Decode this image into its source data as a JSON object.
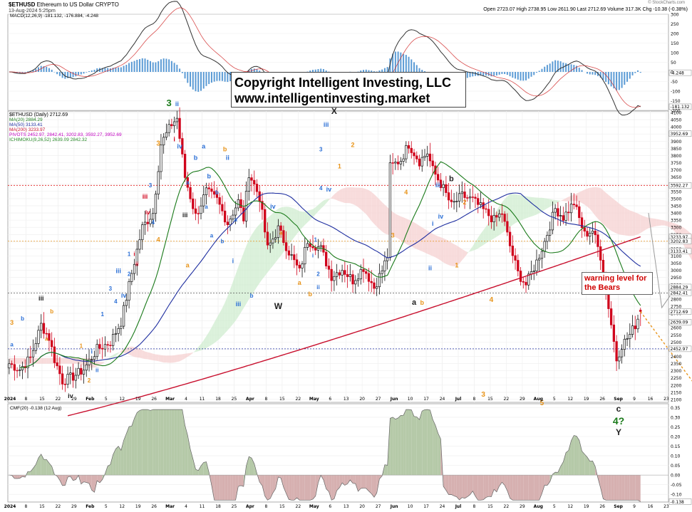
{
  "header": {
    "symbol": "$ETHUSD",
    "name": "Ethereum to US Dollar",
    "exchange": "CRYPTO",
    "date": "13-Aug-2024 5:25pm",
    "ohlc": "Open 2723.07  High 2738.95  Low 2611.90  Last 2712.69  Volume 317.3K  Chg -10.38 (-0.38%)",
    "credit": "© StockCharts.com"
  },
  "copyright": {
    "line1": "Copyright Intelligent Investing, LLC",
    "line2": "www.intelligentinvesting.market"
  },
  "warning_label": "warning level for the Bears",
  "legend": {
    "macd": "MACD(12,26,9) -181.132, -176.884, -4.248",
    "price": "$ETHUSD (Daily) 2712.69",
    "ma20": "MA(20) 2884.29",
    "ma50": "MA(50) 3133.41",
    "ma200": "MA(200) 3233.97",
    "pivots": "PIVOTS 2452.97, 2842.41, 3202.83, 3592.27, 3952.69",
    "ichimoku": "ICHIMOKU(9,26,52) 2639.09 2842.32",
    "cmf": "CMF(20) -0.138 (12 Aug)"
  },
  "colors": {
    "up": "#111111",
    "down": "#d0021b",
    "ma20": "#1a7a1a",
    "ma50": "#1f2fa0",
    "ma200": "#c8102e",
    "cloud_bull": "#cfeccf",
    "cloud_bear": "#f5d0d0",
    "wave_blue": "#2b6fd6",
    "wave_orange": "#e8941a",
    "wave_red": "#d0021b",
    "wave_green": "#1a7a1a"
  },
  "chart_data": {
    "type": "candlestick",
    "xlabels": [
      "2024",
      "8",
      "15",
      "22",
      "29",
      "Feb",
      "5",
      "12",
      "19",
      "26",
      "Mar",
      "4",
      "11",
      "18",
      "25",
      "Apr",
      "8",
      "15",
      "22",
      "May",
      "6",
      "13",
      "20",
      "27",
      "Jun",
      "10",
      "17",
      "24",
      "Jul",
      "8",
      "15",
      "22",
      "29",
      "Aug",
      "5",
      "12",
      "19",
      "26",
      "Sep",
      "9",
      "16",
      "23"
    ],
    "price_yticks": [
      2100,
      2150,
      2200,
      2250,
      2300,
      2350,
      2400,
      2450,
      2500,
      2550,
      2600,
      2650,
      2700,
      2750,
      2800,
      2850,
      2900,
      2950,
      3000,
      3050,
      3100,
      3150,
      3200,
      3250,
      3300,
      3350,
      3400,
      3450,
      3500,
      3550,
      3600,
      3650,
      3700,
      3750,
      3800,
      3850,
      3900,
      3950,
      4000,
      4050,
      4100
    ],
    "price_ylim": [
      2080,
      4110
    ],
    "close_anchors": [
      [
        0,
        2350
      ],
      [
        4,
        2310
      ],
      [
        8,
        2390
      ],
      [
        12,
        2620
      ],
      [
        15,
        2530
      ],
      [
        17,
        2380
      ],
      [
        20,
        2230
      ],
      [
        24,
        2260
      ],
      [
        28,
        2310
      ],
      [
        33,
        2450
      ],
      [
        38,
        2500
      ],
      [
        42,
        2640
      ],
      [
        46,
        2980
      ],
      [
        50,
        3300
      ],
      [
        54,
        3400
      ],
      [
        57,
        3880
      ],
      [
        61,
        4020
      ],
      [
        63,
        4060
      ],
      [
        66,
        3650
      ],
      [
        70,
        3380
      ],
      [
        74,
        3550
      ],
      [
        78,
        3490
      ],
      [
        82,
        3330
      ],
      [
        86,
        3480
      ],
      [
        88,
        3360
      ],
      [
        90,
        3680
      ],
      [
        94,
        3510
      ],
      [
        97,
        3150
      ],
      [
        101,
        3290
      ],
      [
        105,
        3130
      ],
      [
        109,
        2990
      ],
      [
        112,
        3210
      ],
      [
        117,
        3150
      ],
      [
        121,
        2960
      ],
      [
        125,
        3010
      ],
      [
        129,
        2930
      ],
      [
        133,
        3020
      ],
      [
        137,
        2880
      ],
      [
        140,
        3000
      ],
      [
        142,
        3100
      ],
      [
        143,
        3720
      ],
      [
        147,
        3770
      ],
      [
        150,
        3880
      ],
      [
        154,
        3760
      ],
      [
        157,
        3820
      ],
      [
        159,
        3700
      ],
      [
        163,
        3570
      ],
      [
        166,
        3450
      ],
      [
        170,
        3520
      ],
      [
        174,
        3490
      ],
      [
        178,
        3420
      ],
      [
        182,
        3350
      ],
      [
        185,
        3400
      ],
      [
        188,
        3170
      ],
      [
        191,
        2980
      ],
      [
        194,
        2900
      ],
      [
        198,
        3060
      ],
      [
        201,
        3200
      ],
      [
        205,
        3430
      ],
      [
        208,
        3370
      ],
      [
        212,
        3470
      ],
      [
        216,
        3250
      ],
      [
        219,
        3280
      ],
      [
        222,
        3100
      ],
      [
        225,
        2750
      ],
      [
        228,
        2380
      ],
      [
        230,
        2480
      ],
      [
        233,
        2550
      ],
      [
        235,
        2620
      ],
      [
        237,
        2713
      ]
    ],
    "ohlc_last": {
      "open": 2723.07,
      "high": 2738.95,
      "low": 2611.9,
      "close": 2712.69,
      "volume": "317.3K"
    },
    "ma20": {
      "name": "MA(20)",
      "last": 2884.29
    },
    "ma50": {
      "name": "MA(50)",
      "last": 3133.41
    },
    "ma200": {
      "name": "MA(200)",
      "last": 3233.97
    },
    "pivots": [
      2452.97,
      2842.41,
      3202.83,
      3592.27,
      3952.69
    ],
    "ichimoku": {
      "tenkan": 2639.09,
      "kijun": 2842.32
    },
    "right_labels": [
      3952.69,
      3592.27,
      3233.97,
      3202.83,
      3133.41,
      2884.29,
      2842.41,
      2712.69,
      2639.09,
      2452.97
    ],
    "macd": {
      "params": "12,26,9",
      "macd": -181.132,
      "signal": -176.884,
      "hist": -4.248,
      "yticks": [
        300,
        250,
        200,
        150,
        100,
        50,
        0,
        -50,
        -100,
        -150,
        -200
      ],
      "ylim": [
        -200,
        300
      ]
    },
    "cmf": {
      "period": 20,
      "last": -0.138,
      "date": "12 Aug",
      "yticks": [
        0.35,
        0.3,
        0.25,
        0.2,
        0.15,
        0.1,
        0.05,
        0.0,
        -0.05,
        -0.1
      ],
      "ylim": [
        -0.14,
        0.37
      ]
    },
    "annotations": [
      {
        "t": "3",
        "d": 1,
        "p": 2620,
        "c": "wave_orange",
        "s": 9
      },
      {
        "t": "a",
        "d": 1,
        "p": 2470,
        "c": "wave_blue",
        "s": 8
      },
      {
        "t": "b",
        "d": 5,
        "p": 2650,
        "c": "wave_blue",
        "s": 8
      },
      {
        "t": "iii",
        "d": 12,
        "p": 2790,
        "c": "wave_black",
        "s": 9
      },
      {
        "t": "b",
        "d": 16,
        "p": 2700,
        "c": "wave_orange",
        "s": 8
      },
      {
        "t": "a",
        "d": 14,
        "p": 2510,
        "c": "wave_orange",
        "s": 8
      },
      {
        "t": "iv",
        "d": 23,
        "p": 2110,
        "c": "wave_black",
        "s": 9
      },
      {
        "t": "1",
        "d": 27,
        "p": 2460,
        "c": "wave_orange",
        "s": 8
      },
      {
        "t": "2",
        "d": 30,
        "p": 2220,
        "c": "wave_orange",
        "s": 8
      },
      {
        "t": "i",
        "d": 31,
        "p": 2420,
        "c": "wave_blue",
        "s": 9
      },
      {
        "t": "ii",
        "d": 33,
        "p": 2290,
        "c": "wave_blue",
        "s": 8
      },
      {
        "t": "1",
        "d": 35,
        "p": 2680,
        "c": "wave_blue",
        "s": 8
      },
      {
        "t": "3",
        "d": 38,
        "p": 2860,
        "c": "wave_blue",
        "s": 8
      },
      {
        "t": "4",
        "d": 40,
        "p": 2770,
        "c": "wave_blue",
        "s": 8
      },
      {
        "t": "iii",
        "d": 41,
        "p": 2980,
        "c": "wave_blue",
        "s": 9
      },
      {
        "t": "iv",
        "d": 43,
        "p": 2810,
        "c": "wave_blue",
        "s": 9
      },
      {
        "t": "1",
        "d": 45,
        "p": 3100,
        "c": "wave_blue",
        "s": 8
      },
      {
        "t": "i",
        "d": 47,
        "p": 3100,
        "c": "wave_red",
        "s": 8
      },
      {
        "t": "ii",
        "d": 48,
        "p": 3030,
        "c": "wave_red",
        "s": 8
      },
      {
        "t": "2",
        "d": 45,
        "p": 2960,
        "c": "wave_blue",
        "s": 8
      },
      {
        "t": "iii",
        "d": 51,
        "p": 3500,
        "c": "wave_red",
        "s": 9
      },
      {
        "t": "iv",
        "d": 52,
        "p": 3390,
        "c": "wave_red",
        "s": 8
      },
      {
        "t": "3",
        "d": 53,
        "p": 3580,
        "c": "wave_blue",
        "s": 8
      },
      {
        "t": "4",
        "d": 54,
        "p": 3320,
        "c": "wave_blue",
        "s": 8
      },
      {
        "t": "4",
        "d": 56,
        "p": 3200,
        "c": "wave_orange",
        "s": 9
      },
      {
        "t": "3",
        "d": 56,
        "p": 3870,
        "c": "wave_orange",
        "s": 10
      },
      {
        "t": "3",
        "d": 60,
        "p": 4145,
        "c": "wave_green",
        "s": 13
      },
      {
        "t": "ii",
        "d": 63,
        "p": 4145,
        "c": "wave_blue",
        "s": 9
      },
      {
        "t": "iv",
        "d": 64,
        "p": 3850,
        "c": "wave_blue",
        "s": 9
      },
      {
        "t": "iii",
        "d": 66,
        "p": 3370,
        "c": "wave_black",
        "s": 9
      },
      {
        "t": "i",
        "d": 62,
        "p": 3900,
        "c": "wave_red",
        "s": 9
      },
      {
        "t": "a",
        "d": 67,
        "p": 3600,
        "c": "wave_blue",
        "s": 8
      },
      {
        "t": "a",
        "d": 67,
        "p": 3020,
        "c": "wave_orange",
        "s": 9
      },
      {
        "t": "b",
        "d": 70,
        "p": 3770,
        "c": "wave_blue",
        "s": 9
      },
      {
        "t": "a",
        "d": 73,
        "p": 3850,
        "c": "wave_blue",
        "s": 9
      },
      {
        "t": "b",
        "d": 75,
        "p": 3640,
        "c": "wave_blue",
        "s": 9
      },
      {
        "t": "a",
        "d": 74,
        "p": 3430,
        "c": "wave_blue",
        "s": 8
      },
      {
        "t": "b",
        "d": 81,
        "p": 3830,
        "c": "wave_orange",
        "s": 9
      },
      {
        "t": "ii",
        "d": 82,
        "p": 3770,
        "c": "wave_blue",
        "s": 9
      },
      {
        "t": "b",
        "d": 78,
        "p": 3530,
        "c": "wave_blue",
        "s": 8
      },
      {
        "t": "a",
        "d": 76,
        "p": 3230,
        "c": "wave_blue",
        "s": 8
      },
      {
        "t": "b",
        "d": 80,
        "p": 3190,
        "c": "wave_blue",
        "s": 8
      },
      {
        "t": "a",
        "d": 85,
        "p": 3340,
        "c": "wave_blue",
        "s": 8
      },
      {
        "t": "i",
        "d": 84,
        "p": 3050,
        "c": "wave_blue",
        "s": 9
      },
      {
        "t": "iii",
        "d": 86,
        "p": 2750,
        "c": "wave_blue",
        "s": 9
      },
      {
        "t": "b",
        "d": 91,
        "p": 2810,
        "c": "wave_blue",
        "s": 8
      },
      {
        "t": "iv",
        "d": 99,
        "p": 3430,
        "c": "wave_blue",
        "s": 9
      },
      {
        "t": "a",
        "d": 102,
        "p": 3250,
        "c": "wave_orange",
        "s": 8
      },
      {
        "t": "W",
        "d": 101,
        "p": 2730,
        "c": "wave_black",
        "s": 12
      },
      {
        "t": "b",
        "d": 113,
        "p": 2820,
        "c": "wave_orange",
        "s": 9
      },
      {
        "t": "a",
        "d": 109,
        "p": 2900,
        "c": "wave_orange",
        "s": 9
      },
      {
        "t": "i",
        "d": 114,
        "p": 3090,
        "c": "wave_blue",
        "s": 8
      },
      {
        "t": "ii",
        "d": 116,
        "p": 2870,
        "c": "wave_blue",
        "s": 8
      },
      {
        "t": "2",
        "d": 116,
        "p": 2960,
        "c": "wave_blue",
        "s": 8
      },
      {
        "t": "1",
        "d": 115,
        "p": 3200,
        "c": "wave_blue",
        "s": 8
      },
      {
        "t": "3",
        "d": 117,
        "p": 3830,
        "c": "wave_blue",
        "s": 8
      },
      {
        "t": "4",
        "d": 117,
        "p": 3560,
        "c": "wave_blue",
        "s": 8
      },
      {
        "t": "iii",
        "d": 119,
        "p": 4000,
        "c": "wave_blue",
        "s": 9
      },
      {
        "t": "iv",
        "d": 120,
        "p": 3550,
        "c": "wave_blue",
        "s": 9
      },
      {
        "t": "1",
        "d": 124,
        "p": 3710,
        "c": "wave_orange",
        "s": 9
      },
      {
        "t": "X",
        "d": 122,
        "p": 4090,
        "c": "wave_black",
        "s": 12
      },
      {
        "t": "2",
        "d": 129,
        "p": 3860,
        "c": "wave_orange",
        "s": 9
      },
      {
        "t": "3",
        "d": 144,
        "p": 3230,
        "c": "wave_orange",
        "s": 9
      },
      {
        "t": "4",
        "d": 149,
        "p": 3530,
        "c": "wave_orange",
        "s": 9
      },
      {
        "t": "a",
        "d": 152,
        "p": 2760,
        "c": "wave_black",
        "s": 11
      },
      {
        "t": "b",
        "d": 155,
        "p": 2760,
        "c": "wave_orange",
        "s": 9
      },
      {
        "t": "i",
        "d": 159,
        "p": 3310,
        "c": "wave_blue",
        "s": 9
      },
      {
        "t": "ii",
        "d": 158,
        "p": 3000,
        "c": "wave_blue",
        "s": 9
      },
      {
        "t": "iii",
        "d": 161,
        "p": 3580,
        "c": "wave_blue",
        "s": 9
      },
      {
        "t": "iv",
        "d": 162,
        "p": 3360,
        "c": "wave_blue",
        "s": 9
      },
      {
        "t": "b",
        "d": 166,
        "p": 3620,
        "c": "wave_black",
        "s": 11
      },
      {
        "t": "1",
        "d": 168,
        "p": 3020,
        "c": "wave_orange",
        "s": 9
      },
      {
        "t": "2",
        "d": 171,
        "p": 3460,
        "c": "wave_orange",
        "s": 9
      },
      {
        "t": "3",
        "d": 178,
        "p": 2120,
        "c": "wave_orange",
        "s": 10
      },
      {
        "t": "4",
        "d": 181,
        "p": 2780,
        "c": "wave_orange",
        "s": 10
      },
      {
        "t": "5",
        "d": 200,
        "p": 2060,
        "c": "wave_orange",
        "s": 10
      }
    ],
    "bottom_labels": [
      {
        "t": "c",
        "c": "wave_black",
        "s": 12
      },
      {
        "t": "4?",
        "c": "wave_green",
        "s": 14
      },
      {
        "t": "Y",
        "c": "wave_black",
        "s": 12
      }
    ]
  }
}
